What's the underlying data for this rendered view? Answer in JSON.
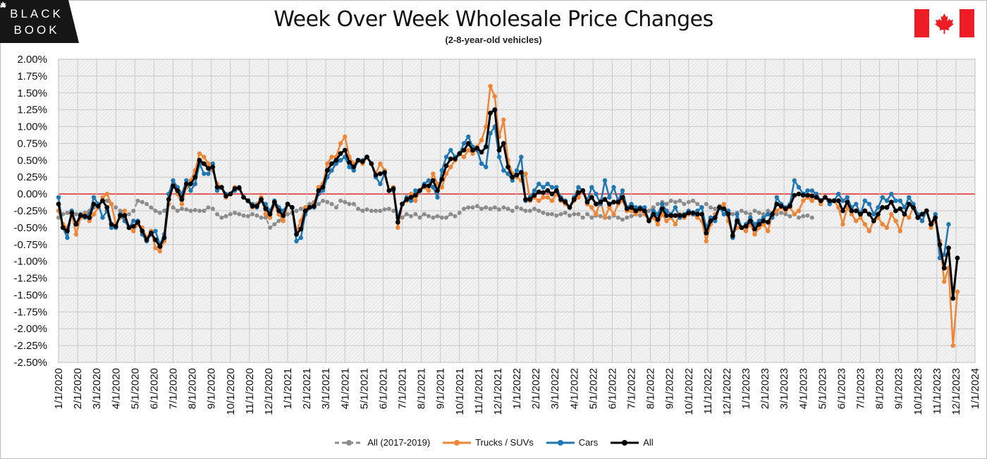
{
  "brand": {
    "line1": "BLACK",
    "line2": "BOOK"
  },
  "header": {
    "title": "Week Over Week Wholesale Price Changes",
    "subtitle": "(2-8-year-old vehicles)"
  },
  "colors": {
    "hist": "#8c8c8c",
    "trucks": "#ef8636",
    "cars": "#1f77b4",
    "all": "#000000",
    "zero_line": "#e00000",
    "flag_red": "#ee1c25"
  },
  "chart_data": {
    "type": "line",
    "x_start": "1/1/2020",
    "x_interval": "weekly",
    "x_ticks": [
      "1/1/2020",
      "2/1/2020",
      "3/1/2020",
      "4/1/2020",
      "5/1/2020",
      "6/1/2020",
      "7/1/2020",
      "8/1/2020",
      "9/1/2020",
      "10/1/2020",
      "11/1/2020",
      "12/1/2020",
      "1/1/2021",
      "2/1/2021",
      "3/1/2021",
      "4/1/2021",
      "5/1/2021",
      "6/1/2021",
      "7/1/2021",
      "8/1/2021",
      "9/1/2021",
      "10/1/2021",
      "11/1/2021",
      "12/1/2021",
      "1/1/2022",
      "2/1/2022",
      "3/1/2022",
      "4/1/2022",
      "5/1/2022",
      "6/1/2022",
      "7/1/2022",
      "8/1/2022",
      "9/1/2022",
      "10/1/2022",
      "11/1/2022",
      "12/1/2022",
      "1/1/2023",
      "2/1/2023",
      "3/1/2023",
      "4/1/2023",
      "5/1/2023",
      "6/1/2023",
      "7/1/2023",
      "8/1/2023",
      "9/1/2023",
      "10/1/2023",
      "11/1/2023",
      "12/1/2023",
      "1/1/2024"
    ],
    "y_ticks": [
      "2.00%",
      "1.75%",
      "1.50%",
      "1.25%",
      "1.00%",
      "0.75%",
      "0.50%",
      "0.25%",
      "0.00%",
      "-0.25%",
      "-0.50%",
      "-0.75%",
      "-1.00%",
      "-1.25%",
      "-1.50%",
      "-1.75%",
      "-2.00%",
      "-2.25%",
      "-2.50%"
    ],
    "ylim": [
      -2.5,
      2.0
    ],
    "grid": true,
    "legend_position": "bottom",
    "series": [
      {
        "name": "All (2017-2019)",
        "style": "dashed",
        "values": [
          -0.35,
          -0.3,
          -0.28,
          -0.3,
          -0.3,
          -0.32,
          -0.28,
          -0.25,
          -0.2,
          -0.15,
          -0.1,
          -0.1,
          -0.15,
          -0.2,
          -0.25,
          -0.3,
          -0.3,
          -0.25,
          -0.1,
          -0.12,
          -0.15,
          -0.2,
          -0.25,
          -0.28,
          -0.25,
          -0.15,
          -0.2,
          -0.25,
          -0.22,
          -0.23,
          -0.25,
          -0.24,
          -0.25,
          -0.25,
          -0.2,
          -0.22,
          -0.3,
          -0.35,
          -0.33,
          -0.3,
          -0.28,
          -0.3,
          -0.32,
          -0.33,
          -0.3,
          -0.32,
          -0.35,
          -0.35,
          -0.5,
          -0.45,
          -0.4,
          -0.35,
          -0.3,
          -0.28,
          -0.25,
          -0.22,
          -0.2,
          -0.15,
          -0.12,
          -0.15,
          -0.1,
          -0.12,
          -0.15,
          -0.2,
          -0.1,
          -0.12,
          -0.15,
          -0.15,
          -0.22,
          -0.25,
          -0.23,
          -0.25,
          -0.25,
          -0.25,
          -0.23,
          -0.22,
          -0.25,
          -0.35,
          -0.35,
          -0.3,
          -0.33,
          -0.3,
          -0.35,
          -0.3,
          -0.33,
          -0.35,
          -0.33,
          -0.35,
          -0.35,
          -0.3,
          -0.33,
          -0.28,
          -0.22,
          -0.2,
          -0.2,
          -0.18,
          -0.22,
          -0.2,
          -0.22,
          -0.2,
          -0.23,
          -0.2,
          -0.22,
          -0.25,
          -0.2,
          -0.22,
          -0.25,
          -0.25,
          -0.22,
          -0.25,
          -0.28,
          -0.3,
          -0.3,
          -0.32,
          -0.3,
          -0.28,
          -0.32,
          -0.3,
          -0.3,
          -0.35,
          -0.3,
          -0.35,
          -0.32,
          -0.33,
          -0.35,
          -0.35,
          -0.32,
          -0.35,
          -0.38,
          -0.35,
          -0.33,
          -0.3,
          -0.32,
          -0.3,
          -0.25,
          -0.2,
          -0.15,
          -0.12,
          -0.15,
          -0.1,
          -0.12,
          -0.1,
          -0.15,
          -0.12,
          -0.1,
          -0.15,
          -0.2,
          -0.15,
          -0.2,
          -0.22,
          -0.18,
          -0.2,
          -0.25,
          -0.3,
          -0.28,
          -0.25,
          -0.28,
          -0.3,
          -0.25,
          -0.28,
          -0.3,
          -0.25,
          -0.28,
          -0.3,
          -0.28,
          -0.3,
          -0.33,
          -0.3,
          -0.35,
          -0.33,
          -0.32,
          -0.35
        ]
      },
      {
        "name": "Trucks / SUVs",
        "style": "solid",
        "values": [
          -0.25,
          -0.45,
          -0.5,
          -0.3,
          -0.6,
          -0.35,
          -0.3,
          -0.4,
          -0.3,
          -0.2,
          -0.05,
          0.0,
          -0.15,
          -0.45,
          -0.35,
          -0.25,
          -0.5,
          -0.55,
          -0.45,
          -0.5,
          -0.65,
          -0.55,
          -0.8,
          -0.85,
          -0.7,
          -0.15,
          0.15,
          0.0,
          -0.15,
          0.1,
          0.2,
          0.35,
          0.6,
          0.55,
          0.45,
          0.35,
          0.15,
          0.1,
          -0.05,
          0.0,
          0.1,
          0.08,
          -0.05,
          -0.1,
          -0.2,
          -0.15,
          -0.05,
          -0.3,
          -0.35,
          -0.15,
          -0.3,
          -0.4,
          -0.15,
          -0.2,
          -0.55,
          -0.4,
          -0.2,
          -0.2,
          -0.15,
          0.1,
          0.15,
          0.45,
          0.55,
          0.55,
          0.75,
          0.85,
          0.55,
          0.45,
          0.5,
          0.45,
          0.55,
          0.45,
          0.3,
          0.45,
          0.35,
          0.05,
          0.1,
          -0.5,
          -0.15,
          -0.1,
          0.0,
          -0.1,
          0.05,
          0.1,
          0.05,
          0.3,
          0.15,
          0.1,
          0.3,
          0.4,
          0.5,
          0.6,
          0.55,
          0.65,
          0.6,
          0.7,
          0.8,
          1.0,
          1.6,
          1.45,
          0.85,
          1.1,
          0.5,
          0.3,
          0.25,
          0.2,
          0.3,
          -0.1,
          -0.05,
          -0.1,
          -0.05,
          -0.05,
          -0.1,
          0.0,
          -0.1,
          -0.15,
          -0.2,
          -0.1,
          -0.05,
          0.05,
          -0.15,
          -0.2,
          -0.3,
          -0.1,
          -0.35,
          -0.2,
          -0.3,
          -0.15,
          -0.1,
          -0.25,
          -0.25,
          -0.3,
          -0.25,
          -0.3,
          -0.4,
          -0.35,
          -0.45,
          -0.3,
          -0.4,
          -0.35,
          -0.45,
          -0.3,
          -0.35,
          -0.3,
          -0.3,
          -0.35,
          -0.4,
          -0.7,
          -0.45,
          -0.3,
          -0.2,
          -0.15,
          -0.4,
          -0.6,
          -0.5,
          -0.5,
          -0.55,
          -0.45,
          -0.6,
          -0.5,
          -0.45,
          -0.55,
          -0.3,
          -0.25,
          -0.2,
          -0.25,
          -0.2,
          -0.3,
          -0.25,
          -0.1,
          -0.05,
          -0.1,
          -0.05,
          -0.15,
          -0.05,
          -0.1,
          -0.1,
          -0.2,
          -0.45,
          -0.2,
          -0.3,
          -0.4,
          -0.35,
          -0.45,
          -0.55,
          -0.4,
          -0.35,
          -0.45,
          -0.5,
          -0.3,
          -0.4,
          -0.55,
          -0.3,
          -0.35,
          -0.2,
          -0.35,
          -0.4,
          -0.25,
          -0.5,
          -0.4,
          -0.7,
          -1.3,
          -1.1,
          -2.25,
          -1.45
        ]
      },
      {
        "name": "Cars",
        "style": "solid",
        "values": [
          -0.05,
          -0.5,
          -0.65,
          -0.25,
          -0.45,
          -0.3,
          -0.35,
          -0.3,
          -0.05,
          -0.15,
          -0.35,
          -0.25,
          -0.5,
          -0.5,
          -0.3,
          -0.4,
          -0.5,
          -0.4,
          -0.4,
          -0.6,
          -0.7,
          -0.6,
          -0.55,
          -0.75,
          -0.6,
          0.0,
          0.2,
          0.1,
          0.0,
          0.2,
          0.05,
          0.15,
          0.45,
          0.3,
          0.3,
          0.45,
          0.05,
          0.1,
          0.0,
          0.0,
          0.05,
          0.1,
          -0.05,
          -0.1,
          -0.15,
          -0.2,
          -0.1,
          -0.15,
          -0.25,
          -0.1,
          -0.2,
          -0.25,
          -0.15,
          -0.2,
          -0.7,
          -0.65,
          -0.3,
          -0.2,
          -0.2,
          0.0,
          0.05,
          0.25,
          0.35,
          0.45,
          0.5,
          0.55,
          0.4,
          0.35,
          0.5,
          0.5,
          0.55,
          0.45,
          0.25,
          0.15,
          0.3,
          0.05,
          0.05,
          -0.35,
          -0.15,
          -0.05,
          -0.1,
          0.05,
          0.05,
          0.15,
          0.2,
          0.1,
          -0.05,
          0.35,
          0.55,
          0.65,
          0.55,
          0.6,
          0.75,
          0.85,
          0.7,
          0.65,
          0.45,
          0.4,
          0.9,
          1.0,
          0.55,
          0.35,
          0.3,
          0.2,
          0.35,
          0.55,
          -0.1,
          -0.05,
          0.05,
          0.15,
          0.1,
          0.15,
          0.1,
          0.1,
          -0.05,
          -0.1,
          -0.2,
          -0.05,
          0.1,
          0.05,
          -0.1,
          0.1,
          0.0,
          -0.15,
          0.2,
          -0.05,
          0.1,
          -0.1,
          0.05,
          -0.2,
          -0.15,
          -0.2,
          -0.2,
          -0.2,
          -0.4,
          -0.25,
          -0.3,
          -0.15,
          -0.25,
          -0.3,
          -0.2,
          -0.35,
          -0.3,
          -0.25,
          -0.3,
          -0.25,
          -0.2,
          -0.5,
          -0.35,
          -0.4,
          -0.2,
          -0.3,
          -0.25,
          -0.65,
          -0.3,
          -0.5,
          -0.45,
          -0.35,
          -0.45,
          -0.4,
          -0.35,
          -0.3,
          -0.35,
          -0.05,
          -0.15,
          -0.2,
          -0.15,
          0.2,
          0.1,
          0.0,
          0.05,
          0.05,
          0.0,
          -0.1,
          -0.05,
          -0.15,
          -0.1,
          0.0,
          -0.1,
          -0.05,
          -0.2,
          -0.15,
          -0.3,
          -0.1,
          -0.15,
          -0.3,
          -0.2,
          -0.05,
          -0.1,
          0.0,
          -0.1,
          -0.1,
          -0.2,
          -0.05,
          -0.15,
          -0.3,
          -0.4,
          -0.25,
          -0.45,
          -0.3,
          -0.95,
          -0.9,
          -0.45
        ]
      },
      {
        "name": "All",
        "style": "solid",
        "values": [
          -0.15,
          -0.5,
          -0.55,
          -0.28,
          -0.45,
          -0.32,
          -0.33,
          -0.35,
          -0.15,
          -0.18,
          -0.1,
          -0.2,
          -0.45,
          -0.48,
          -0.32,
          -0.32,
          -0.5,
          -0.48,
          -0.42,
          -0.55,
          -0.68,
          -0.58,
          -0.68,
          -0.78,
          -0.65,
          -0.08,
          0.12,
          0.05,
          -0.08,
          0.15,
          0.15,
          0.25,
          0.5,
          0.45,
          0.38,
          0.4,
          0.1,
          0.1,
          -0.03,
          0.0,
          0.08,
          0.09,
          -0.05,
          -0.1,
          -0.18,
          -0.18,
          -0.08,
          -0.22,
          -0.3,
          -0.12,
          -0.25,
          -0.32,
          -0.15,
          -0.2,
          -0.6,
          -0.52,
          -0.25,
          -0.2,
          -0.18,
          0.05,
          0.1,
          0.35,
          0.45,
          0.5,
          0.6,
          0.65,
          0.47,
          0.4,
          0.5,
          0.48,
          0.55,
          0.45,
          0.28,
          0.3,
          0.32,
          0.05,
          0.08,
          -0.42,
          -0.15,
          -0.08,
          -0.05,
          -0.02,
          0.05,
          0.12,
          0.12,
          0.2,
          0.05,
          0.22,
          0.42,
          0.52,
          0.52,
          0.6,
          0.65,
          0.75,
          0.65,
          0.68,
          0.62,
          0.7,
          1.2,
          1.25,
          0.65,
          0.75,
          0.4,
          0.25,
          0.28,
          0.32,
          -0.08,
          -0.08,
          -0.02,
          0.03,
          0.02,
          0.05,
          0.0,
          0.05,
          -0.08,
          -0.12,
          -0.2,
          -0.08,
          0.02,
          0.05,
          -0.12,
          -0.05,
          -0.15,
          -0.12,
          -0.08,
          -0.15,
          -0.12,
          -0.12,
          -0.05,
          -0.22,
          -0.2,
          -0.25,
          -0.22,
          -0.25,
          -0.4,
          -0.3,
          -0.38,
          -0.22,
          -0.32,
          -0.32,
          -0.32,
          -0.32,
          -0.32,
          -0.28,
          -0.28,
          -0.3,
          -0.3,
          -0.58,
          -0.4,
          -0.35,
          -0.2,
          -0.22,
          -0.3,
          -0.62,
          -0.4,
          -0.5,
          -0.48,
          -0.4,
          -0.52,
          -0.45,
          -0.4,
          -0.42,
          -0.3,
          -0.15,
          -0.18,
          -0.22,
          -0.18,
          -0.02,
          0.0,
          -0.02,
          -0.02,
          -0.03,
          -0.05,
          -0.1,
          -0.05,
          -0.1,
          -0.1,
          -0.1,
          -0.25,
          -0.12,
          -0.25,
          -0.25,
          -0.3,
          -0.25,
          -0.3,
          -0.4,
          -0.3,
          -0.2,
          -0.2,
          -0.12,
          -0.25,
          -0.22,
          -0.3,
          -0.15,
          -0.2,
          -0.35,
          -0.3,
          -0.25,
          -0.45,
          -0.35,
          -0.75,
          -1.1,
          -0.8,
          -1.55,
          -0.95
        ]
      }
    ]
  }
}
